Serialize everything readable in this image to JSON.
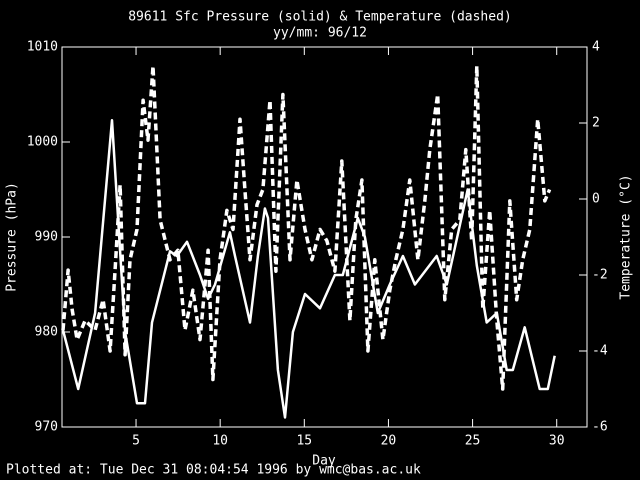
{
  "chart_data": {
    "type": "line",
    "title": "89611 Sfc Pressure (solid) & Temperature (dashed)",
    "subtitle": "yy/mm: 96/12",
    "xlabel": "Day",
    "ylabel": "Pressure (hPa)",
    "y2label": "Temperature (°C)",
    "footer": "Plotted at: Tue Dec 31 08:04:54 1996 by wmc@bas.ac.uk",
    "xlim": [
      0.6,
      31.8
    ],
    "xticks": [
      5,
      10,
      15,
      20,
      25,
      30
    ],
    "ylim": [
      970,
      1010
    ],
    "yticks": [
      970,
      980,
      990,
      1000,
      1010
    ],
    "y2lim": [
      -6,
      4
    ],
    "y2ticks": [
      -6,
      -4,
      -2,
      0,
      2,
      4
    ],
    "series": [
      {
        "color": "#ffffff",
        "dash": false,
        "x": [
          0.66,
          1.56,
          2.57,
          3.57,
          4.35,
          5.06,
          5.53,
          5.95,
          7.02,
          7.43,
          8.03,
          8.8,
          9.28,
          9.69,
          10.58,
          10.88,
          11.77,
          12.24,
          12.66,
          12.84,
          13.43,
          13.85,
          14.32,
          15.04,
          15.93,
          16.82,
          17.29,
          18.18,
          18.6,
          19.37,
          20.08,
          20.86,
          21.57,
          22.87,
          23.47,
          24.71,
          25.25,
          25.84,
          26.44,
          27.03,
          27.39,
          28.1,
          28.99,
          29.47,
          29.88
        ],
        "values": [
          980.2,
          974,
          982,
          1002.3,
          980,
          972.5,
          972.5,
          981,
          988.5,
          988,
          989.5,
          986,
          983.5,
          985,
          990.5,
          988,
          981,
          988,
          993,
          992,
          976,
          971,
          980,
          984,
          982.5,
          986,
          986,
          992,
          990,
          982,
          985,
          988,
          985,
          988,
          985,
          995,
          987,
          981,
          982,
          976,
          976,
          980.5,
          974,
          974,
          977.5
        ]
      },
      {
        "color": "#ffffff",
        "dash": true,
        "axis": "y2",
        "x": [
          0.66,
          0.96,
          1.2,
          1.5,
          1.97,
          2.57,
          3.04,
          3.46,
          3.75,
          4.05,
          4.35,
          4.64,
          5.06,
          5.42,
          5.71,
          6.01,
          6.43,
          7.02,
          7.49,
          7.91,
          8.38,
          8.8,
          9.28,
          9.57,
          9.99,
          10.4,
          10.76,
          11.18,
          11.47,
          11.77,
          12.19,
          12.54,
          12.96,
          13.31,
          13.73,
          14.15,
          14.56,
          15.04,
          15.45,
          15.93,
          16.34,
          16.82,
          17.23,
          17.71,
          18.06,
          18.42,
          18.78,
          19.19,
          19.67,
          20.08,
          20.44,
          20.86,
          21.27,
          21.75,
          22.16,
          22.46,
          22.93,
          23.35,
          23.76,
          24.24,
          24.6,
          24.95,
          25.25,
          25.61,
          26.02,
          26.44,
          26.79,
          27.21,
          27.62,
          27.98,
          28.4,
          28.87,
          29.29,
          29.58
        ],
        "values": [
          -3.45,
          -1.87,
          -2.9,
          -3.7,
          -3.2,
          -3.45,
          -2.65,
          -4.0,
          -1.9,
          0.37,
          -4.1,
          -1.6,
          -0.8,
          2.6,
          1.55,
          3.5,
          -0.55,
          -1.6,
          -1.35,
          -3.45,
          -2.4,
          -3.7,
          -1.35,
          -4.75,
          -1.6,
          -0.3,
          -0.8,
          2.1,
          0.25,
          -1.6,
          -0.15,
          0.25,
          2.6,
          -1.9,
          2.75,
          -1.6,
          0.5,
          -0.8,
          -1.6,
          -0.8,
          -1.1,
          -1.9,
          1.0,
          -3.2,
          -0.55,
          0.5,
          -4.0,
          -1.6,
          -3.7,
          -2.4,
          -1.6,
          -0.8,
          0.5,
          -1.6,
          -0.05,
          1.3,
          2.75,
          -2.65,
          -0.8,
          -0.55,
          1.3,
          -1.1,
          3.5,
          -2.9,
          -0.3,
          -3.2,
          -5.0,
          -0.05,
          -2.65,
          -1.6,
          -0.8,
          2.1,
          -0.05,
          0.25
        ]
      }
    ]
  }
}
